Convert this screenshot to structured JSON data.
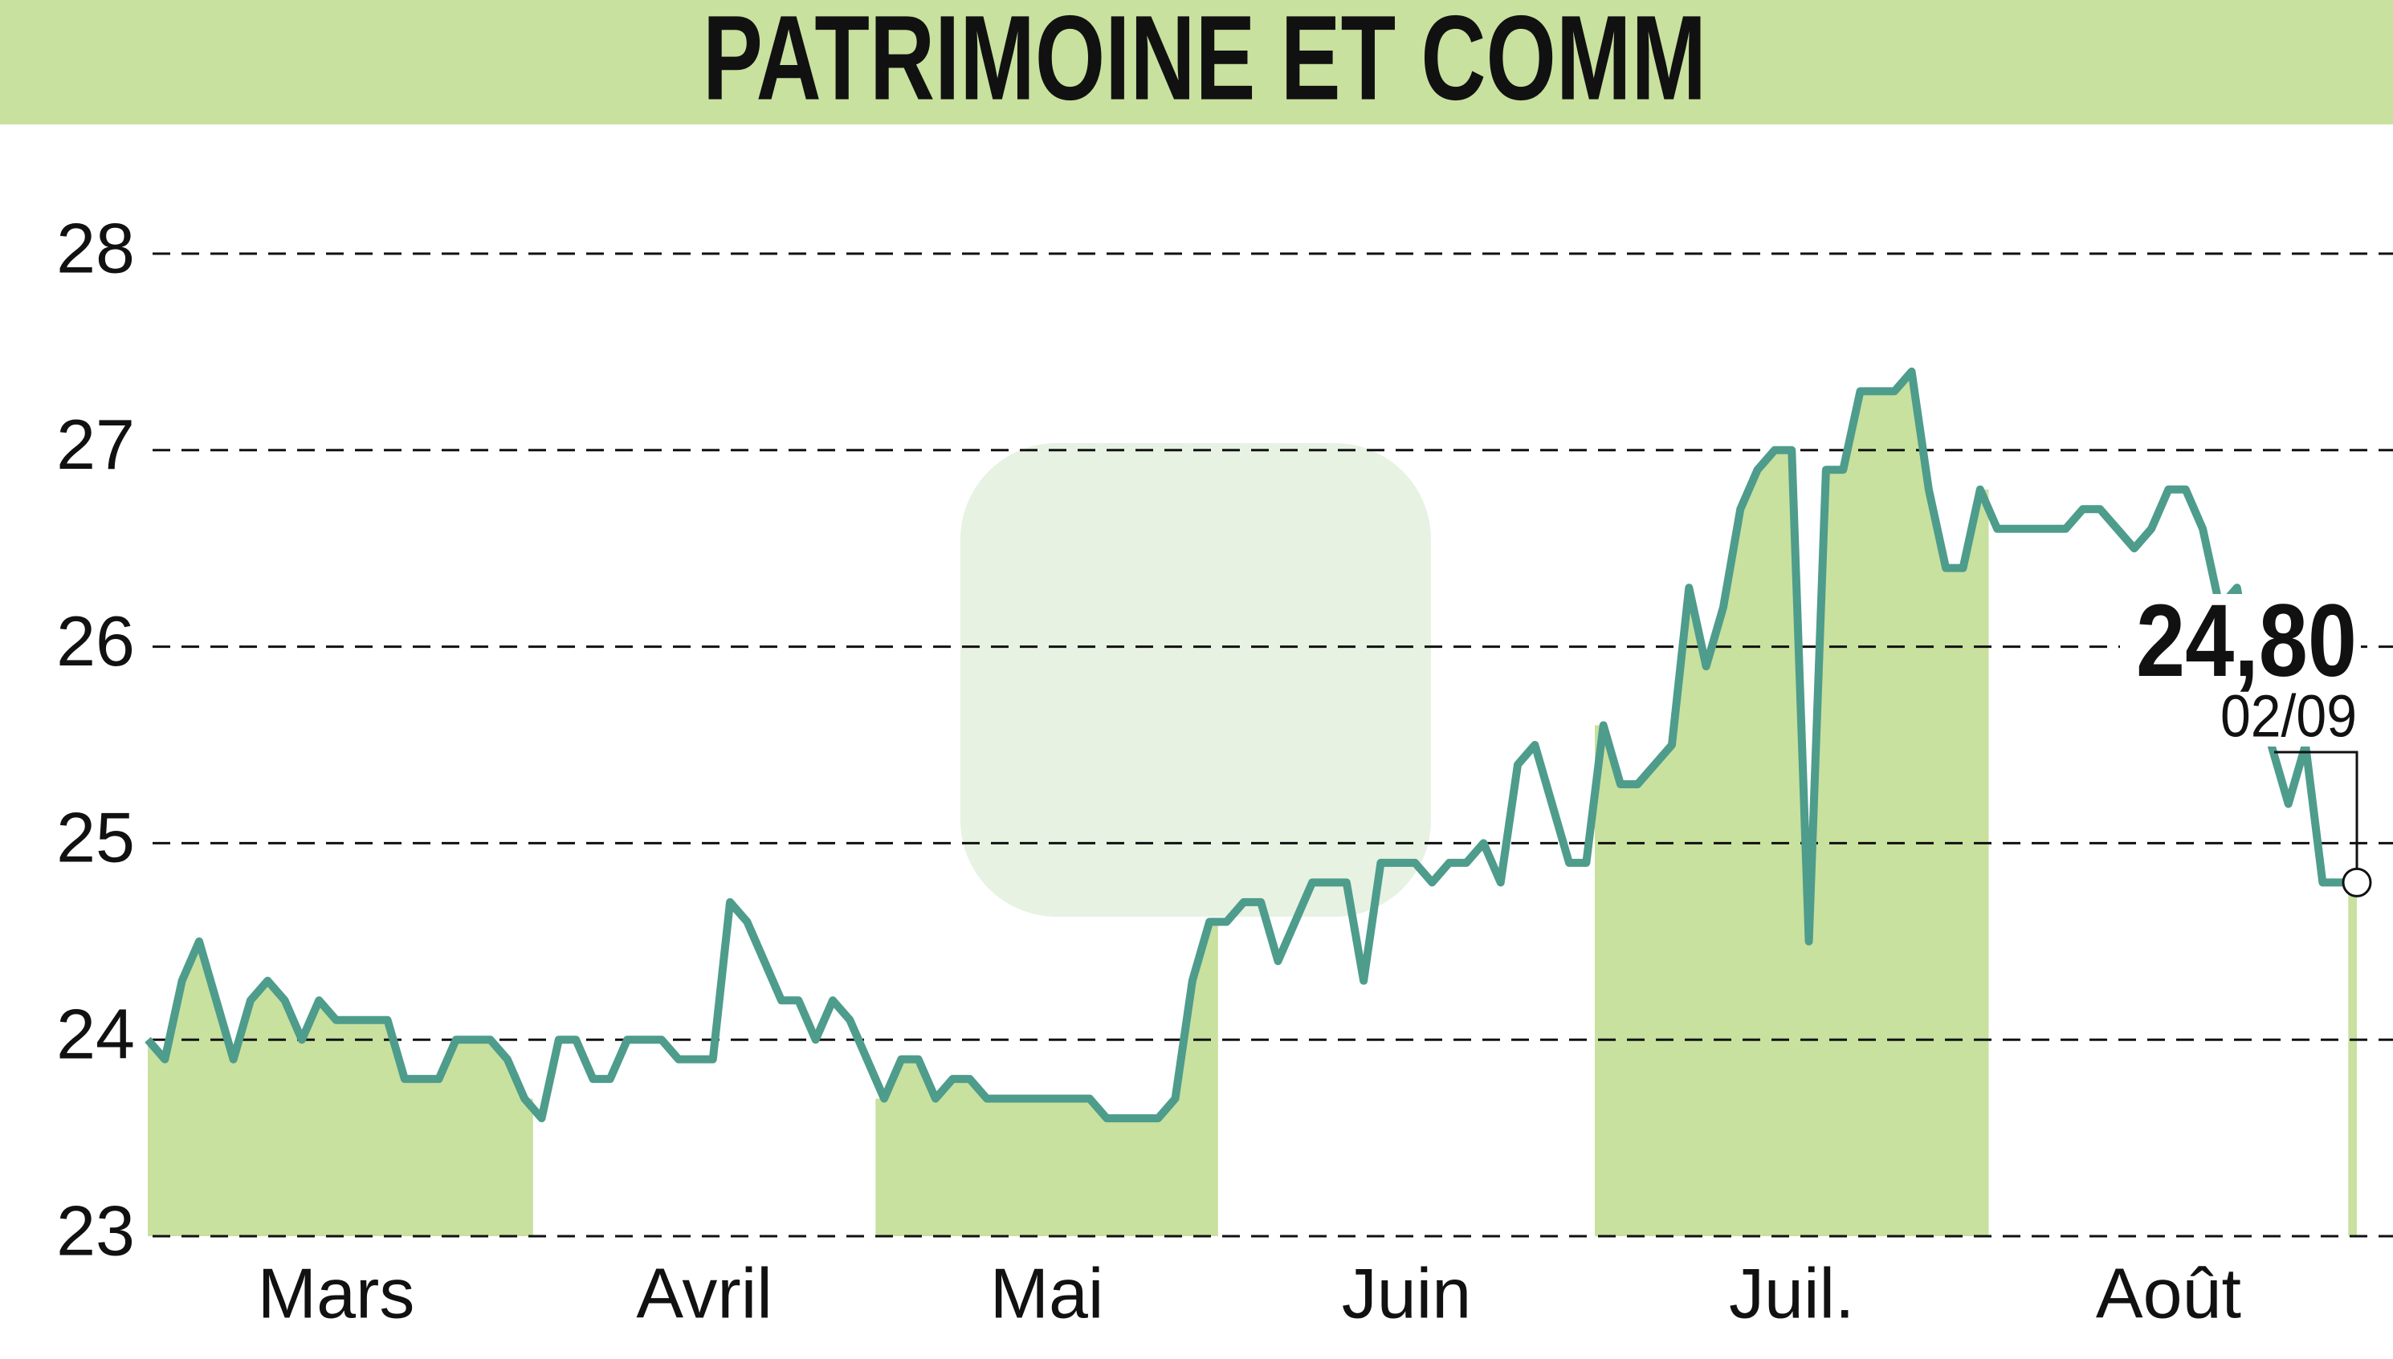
{
  "chart_data": {
    "type": "line",
    "title": "PATRIMOINE ET COMM",
    "categories": [
      "Mars",
      "Mars",
      "Mars",
      "Mars",
      "Mars",
      "Mars",
      "Mars",
      "Mars",
      "Mars",
      "Mars",
      "Mars",
      "Mars",
      "Mars",
      "Mars",
      "Mars",
      "Mars",
      "Mars",
      "Mars",
      "Mars",
      "Mars",
      "Mars",
      "Mars",
      "Mars",
      "Avril",
      "Avril",
      "Avril",
      "Avril",
      "Avril",
      "Avril",
      "Avril",
      "Avril",
      "Avril",
      "Avril",
      "Avril",
      "Avril",
      "Avril",
      "Avril",
      "Avril",
      "Avril",
      "Avril",
      "Avril",
      "Avril",
      "Avril",
      "Mai",
      "Mai",
      "Mai",
      "Mai",
      "Mai",
      "Mai",
      "Mai",
      "Mai",
      "Mai",
      "Mai",
      "Mai",
      "Mai",
      "Mai",
      "Mai",
      "Mai",
      "Mai",
      "Mai",
      "Mai",
      "Mai",
      "Mai",
      "Juin",
      "Juin",
      "Juin",
      "Juin",
      "Juin",
      "Juin",
      "Juin",
      "Juin",
      "Juin",
      "Juin",
      "Juin",
      "Juin",
      "Juin",
      "Juin",
      "Juin",
      "Juin",
      "Juin",
      "Juin",
      "Juin",
      "Juin",
      "Juin",
      "Juin",
      "Juil.",
      "Juil.",
      "Juil.",
      "Juil.",
      "Juil.",
      "Juil.",
      "Juil.",
      "Juil.",
      "Juil.",
      "Juil.",
      "Juil.",
      "Juil.",
      "Juil.",
      "Juil.",
      "Juil.",
      "Juil.",
      "Juil.",
      "Juil.",
      "Juil.",
      "Juil.",
      "Juil.",
      "Juil.",
      "Juil.",
      "Août",
      "Août",
      "Août",
      "Août",
      "Août",
      "Août",
      "Août",
      "Août",
      "Août",
      "Août",
      "Août",
      "Août",
      "Août",
      "Août",
      "Août",
      "Août",
      "Août",
      "Août",
      "Août",
      "Août",
      "Août",
      null
    ],
    "series": [
      {
        "name": "PATRIMOINE ET COMM",
        "color": "#4e9c8c",
        "values": [
          24.0,
          23.9,
          24.3,
          24.5,
          24.2,
          23.9,
          24.2,
          24.3,
          24.2,
          24.0,
          24.2,
          24.1,
          24.1,
          24.1,
          24.1,
          23.8,
          23.8,
          23.8,
          24.0,
          24.0,
          24.0,
          23.9,
          23.7,
          23.6,
          24.0,
          24.0,
          23.8,
          23.8,
          24.0,
          24.0,
          24.0,
          23.9,
          23.9,
          23.9,
          24.7,
          24.6,
          24.4,
          24.2,
          24.2,
          24.0,
          24.2,
          24.1,
          23.9,
          23.7,
          23.9,
          23.9,
          23.7,
          23.8,
          23.8,
          23.7,
          23.7,
          23.7,
          23.7,
          23.7,
          23.7,
          23.7,
          23.6,
          23.6,
          23.6,
          23.6,
          23.7,
          24.3,
          24.6,
          24.6,
          24.7,
          24.7,
          24.4,
          24.6,
          24.8,
          24.8,
          24.8,
          24.3,
          24.9,
          24.9,
          24.9,
          24.8,
          24.9,
          24.9,
          25.0,
          24.8,
          25.4,
          25.5,
          25.2,
          24.9,
          24.9,
          25.6,
          25.3,
          25.3,
          25.4,
          25.5,
          26.3,
          25.9,
          26.2,
          26.7,
          26.9,
          27.0,
          27.0,
          24.5,
          26.9,
          26.9,
          27.3,
          27.3,
          27.3,
          27.4,
          26.8,
          26.4,
          26.4,
          26.8,
          26.6,
          26.6,
          26.6,
          26.6,
          26.6,
          26.7,
          26.7,
          26.6,
          26.5,
          26.6,
          26.8,
          26.8,
          26.6,
          26.2,
          26.3,
          25.8,
          25.5,
          25.2,
          25.5,
          24.8,
          24.8,
          24.8
        ]
      }
    ],
    "last_value_label": "24,80",
    "last_date": "02/09",
    "ylim": [
      23,
      28
    ],
    "yticks": [
      23,
      24,
      25,
      26,
      27,
      28
    ],
    "grid": true,
    "shade_color": "#c8e19e"
  }
}
